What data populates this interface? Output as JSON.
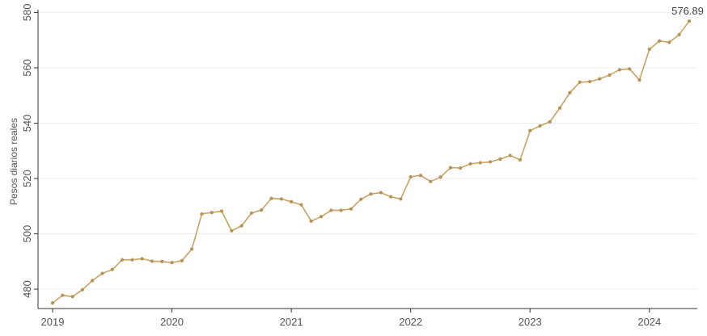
{
  "chart_data": {
    "type": "line",
    "title": "",
    "xlabel": "",
    "ylabel": "Pesos diarios reales",
    "ylim": [
      473,
      581
    ],
    "xlim": [
      "2019-01",
      "2024-05"
    ],
    "yticks": [
      480,
      500,
      520,
      540,
      560,
      580
    ],
    "xticks": [
      "2019",
      "2020",
      "2021",
      "2022",
      "2023",
      "2024"
    ],
    "grid": true,
    "legend": "none",
    "line_color": "#c8a364",
    "marker_color": "#b89255",
    "annotation": {
      "text": "576.89",
      "x": "2024-05",
      "y": 576.89
    },
    "series": [
      {
        "x": [
          "2019-01",
          "2019-02",
          "2019-03",
          "2019-04",
          "2019-05",
          "2019-06",
          "2019-07",
          "2019-08",
          "2019-09",
          "2019-10",
          "2019-11",
          "2019-12",
          "2020-01",
          "2020-02",
          "2020-03",
          "2020-04",
          "2020-05",
          "2020-06",
          "2020-07",
          "2020-08",
          "2020-09",
          "2020-10",
          "2020-11",
          "2020-12",
          "2021-01",
          "2021-02",
          "2021-03",
          "2021-04",
          "2021-05",
          "2021-06",
          "2021-07",
          "2021-08",
          "2021-09",
          "2021-10",
          "2021-11",
          "2021-12",
          "2022-01",
          "2022-02",
          "2022-03",
          "2022-04",
          "2022-05",
          "2022-06",
          "2022-07",
          "2022-08",
          "2022-09",
          "2022-10",
          "2022-11",
          "2022-12",
          "2023-01",
          "2023-02",
          "2023-03",
          "2023-04",
          "2023-05",
          "2023-06",
          "2023-07",
          "2023-08",
          "2023-09",
          "2023-10",
          "2023-11",
          "2023-12",
          "2024-01",
          "2024-02",
          "2024-03",
          "2024-04",
          "2024-05"
        ],
        "values": [
          475.0,
          477.8,
          477.3,
          479.8,
          483.1,
          485.7,
          487.1,
          490.6,
          490.6,
          491.0,
          490.1,
          490.0,
          489.6,
          490.3,
          494.5,
          507.2,
          507.7,
          508.2,
          501.1,
          502.9,
          507.5,
          508.6,
          512.8,
          512.6,
          511.6,
          510.5,
          504.6,
          506.2,
          508.5,
          508.5,
          509.0,
          512.5,
          514.4,
          514.9,
          513.4,
          512.6,
          520.6,
          521.1,
          518.9,
          520.5,
          523.9,
          523.8,
          525.3,
          525.7,
          526.0,
          527.0,
          528.3,
          526.7,
          537.3,
          539.0,
          540.5,
          545.5,
          551.0,
          554.8,
          555.0,
          556.0,
          557.4,
          559.3,
          559.6,
          555.6,
          566.7,
          569.7,
          569.2,
          572.0,
          576.89
        ]
      }
    ]
  }
}
